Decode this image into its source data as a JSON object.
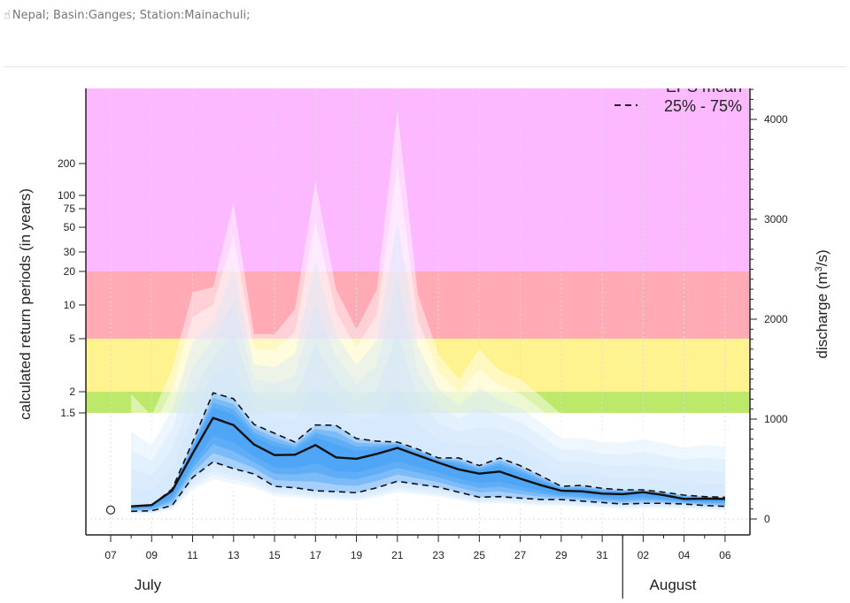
{
  "header": {
    "icon": "hand-pointer-icon",
    "text": "Nepal; Basin:Ganges; Station:Mainachuli;"
  },
  "chart_data": {
    "type": "area",
    "ylabel_left": "calculated return periods (in years)",
    "ylabel_right": "discharge (m³/s)",
    "ylabel_right_parts": {
      "pre": "discharge (m",
      "sup": "3",
      "post": "/s)"
    },
    "ylim_right": [
      -100,
      4400
    ],
    "right_ticks": [
      0,
      1000,
      2000,
      3000,
      4000
    ],
    "return_periods": [
      {
        "label": "1.5",
        "discharge": 1062
      },
      {
        "label": "2",
        "discharge": 1274
      },
      {
        "label": "5",
        "discharge": 1805
      },
      {
        "label": "10",
        "discharge": 2142
      },
      {
        "label": "20",
        "discharge": 2478
      },
      {
        "label": "30",
        "discharge": 2673
      },
      {
        "label": "50",
        "discharge": 2920
      },
      {
        "label": "75",
        "discharge": 3106
      },
      {
        "label": "100",
        "discharge": 3239
      },
      {
        "label": "200",
        "discharge": 3558
      }
    ],
    "threshold_bands": [
      {
        "from": 1062,
        "to": 1274,
        "color": "#bde96a"
      },
      {
        "from": 1274,
        "to": 1805,
        "color": "#fff38f"
      },
      {
        "from": 1805,
        "to": 2478,
        "color": "#ffaab4"
      },
      {
        "from": 2478,
        "to": 4400,
        "color": "#fdb9ff"
      }
    ],
    "x_tick_labels": [
      "07",
      "09",
      "11",
      "13",
      "15",
      "17",
      "19",
      "21",
      "23",
      "25",
      "27",
      "29",
      "31",
      "02",
      "04",
      "06"
    ],
    "months": [
      "July",
      "August"
    ],
    "dates": [
      "07-08",
      "07-09",
      "07-10",
      "07-11",
      "07-12",
      "07-13",
      "07-14",
      "07-15",
      "07-16",
      "07-17",
      "07-18",
      "07-19",
      "07-20",
      "07-21",
      "07-22",
      "07-23",
      "07-24",
      "07-25",
      "07-26",
      "07-27",
      "07-28",
      "07-29",
      "07-30",
      "07-31",
      "08-01",
      "08-02",
      "08-03",
      "08-04",
      "08-05",
      "08-06"
    ],
    "series": [
      {
        "name": "EPS mean",
        "style": "solid",
        "values": [
          127,
          140,
          283,
          655,
          1012,
          940,
          746,
          640,
          643,
          740,
          617,
          602,
          652,
          711,
          637,
          564,
          496,
          454,
          475,
          404,
          339,
          283,
          277,
          254,
          248,
          268,
          239,
          201,
          204,
          201
        ]
      },
      {
        "name": "25% - 75%",
        "role": "p75",
        "style": "dashed",
        "values": [
          127,
          135,
          300,
          770,
          1263,
          1204,
          947,
          858,
          770,
          941,
          938,
          805,
          779,
          770,
          699,
          611,
          611,
          534,
          611,
          534,
          434,
          327,
          336,
          307,
          292,
          292,
          268,
          239,
          224,
          218
        ]
      },
      {
        "name": "25% - 75%",
        "role": "p25",
        "style": "dashed",
        "values": [
          77,
          82,
          135,
          416,
          572,
          504,
          451,
          327,
          313,
          283,
          274,
          263,
          313,
          378,
          348,
          319,
          268,
          218,
          224,
          209,
          195,
          195,
          180,
          165,
          150,
          157,
          157,
          150,
          135,
          127
        ]
      },
      {
        "role": "ensemble-max",
        "values": [
          1250,
          1035,
          1500,
          2270,
          2320,
          3160,
          1850,
          1850,
          2100,
          3380,
          2300,
          1900,
          2300,
          4090,
          2250,
          1650,
          1400,
          1700,
          1480,
          1400,
          1230,
          1050,
          1050,
          1000,
          1000,
          1050,
          1000,
          950,
          1000,
          980
        ]
      }
    ],
    "observation": {
      "date": "07-07",
      "value": 90
    },
    "legend": {
      "position": "top-right",
      "items": [
        "EPS mean",
        "25% - 75%"
      ]
    },
    "colors": {
      "ensemble": "#1e88f0",
      "mean": "#000000"
    }
  }
}
